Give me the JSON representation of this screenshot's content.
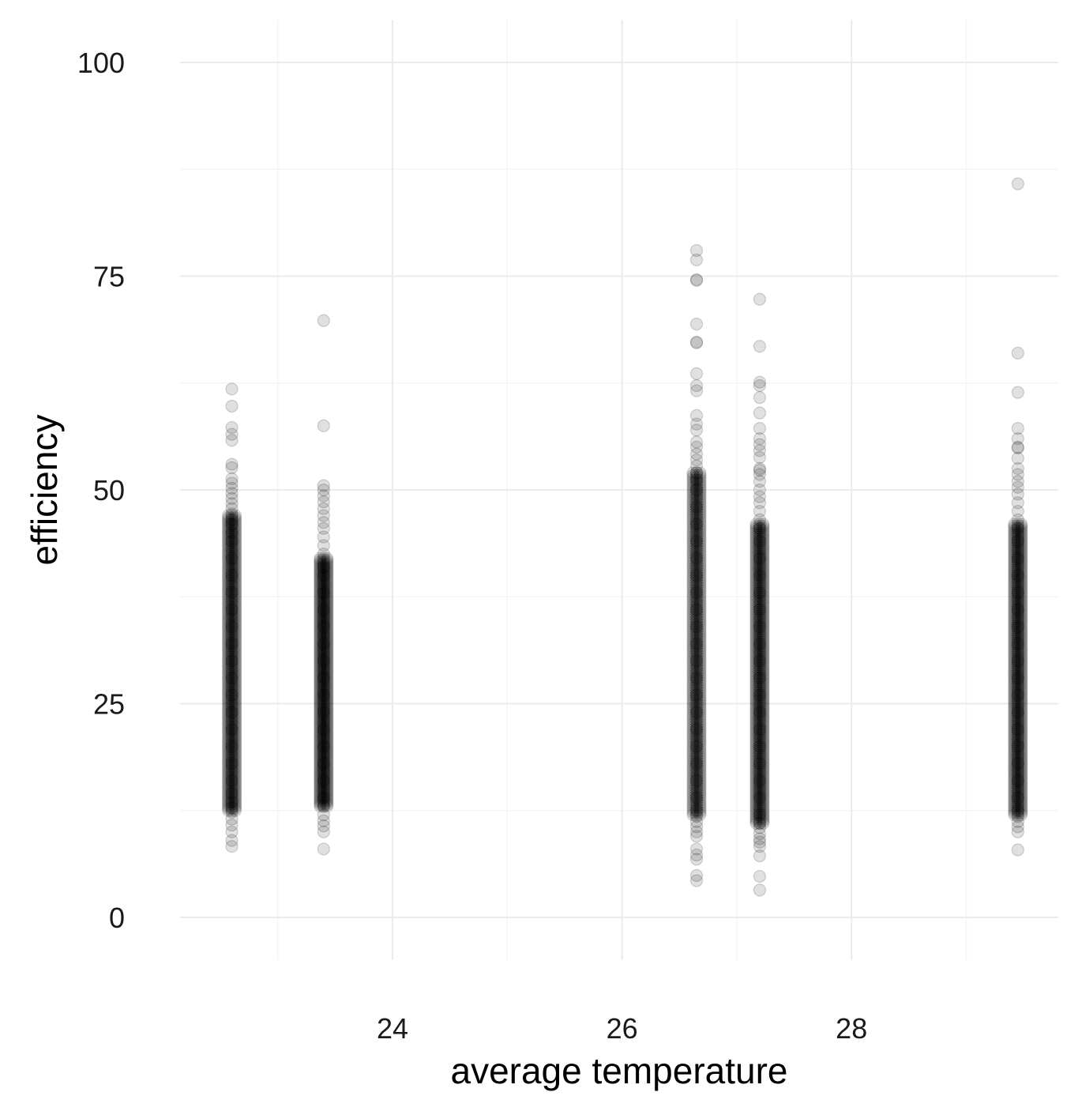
{
  "colors": {
    "background": "#ffffff",
    "grid_major": "#ebebeb",
    "grid_minor": "#f5f5f5",
    "point_fill": "#000000",
    "point_stroke": "#000000"
  },
  "chart_data": {
    "type": "scatter",
    "title": "",
    "xlabel": "average temperature",
    "ylabel": "efficiency",
    "xlim": [
      22.0,
      29.8
    ],
    "ylim": [
      -2,
      102
    ],
    "x_ticks": [
      24,
      26,
      28
    ],
    "x_tick_labels": [
      "24",
      "26",
      "28"
    ],
    "x_minor_ticks": [
      23,
      25,
      27,
      29
    ],
    "y_ticks": [
      0,
      25,
      50,
      75,
      100
    ],
    "y_tick_labels": [
      "0",
      "25",
      "50",
      "75",
      "100"
    ],
    "y_minor_ticks": [
      12.5,
      37.5,
      62.5,
      87.5
    ],
    "grid": true,
    "legend": "none",
    "point_opacity": 0.12,
    "series": [
      {
        "x": 22.6,
        "dense_range": [
          12.5,
          47
        ],
        "y": [
          8.3,
          9.0,
          10.0,
          10.8,
          11.5,
          12.3,
          12.8,
          13.5,
          14.5,
          16,
          18,
          20,
          22,
          24,
          26,
          28,
          30,
          32,
          34,
          36,
          38,
          40,
          42,
          44,
          45,
          46,
          46.5,
          47.2,
          47.8,
          48.4,
          49.0,
          49.6,
          50.2,
          50.8,
          51.3,
          52.6,
          53.0,
          55.8,
          56.5,
          57.3,
          59.8,
          61.8
        ]
      },
      {
        "x": 23.4,
        "dense_range": [
          13,
          42
        ],
        "y": [
          8.0,
          10.0,
          10.7,
          11.3,
          12,
          13,
          14,
          16,
          18,
          20,
          22,
          24,
          26,
          28,
          30,
          32,
          34,
          36,
          38,
          40,
          41,
          42.5,
          43.5,
          44.5,
          45.5,
          46.2,
          47,
          47.8,
          48.6,
          49.3,
          50,
          50.5,
          57.5,
          69.8
        ]
      },
      {
        "x": 26.65,
        "dense_range": [
          12,
          52
        ],
        "y": [
          4.3,
          4.9,
          6.8,
          7.3,
          8.0,
          9.5,
          10.0,
          10.6,
          11.2,
          11.8,
          12.5,
          14,
          16,
          18,
          20,
          22,
          24,
          26,
          28,
          30,
          32,
          34,
          36,
          38,
          40,
          42,
          44,
          46,
          48,
          50,
          51.2,
          52.0,
          52.8,
          53.5,
          54.2,
          55.0,
          55.6,
          57.0,
          57.7,
          58.7,
          61.6,
          62.2,
          63.6,
          67.2,
          67.3,
          69.4,
          74.5,
          74.6,
          76.9,
          78.0
        ]
      },
      {
        "x": 27.2,
        "dense_range": [
          11,
          46
        ],
        "y": [
          3.2,
          4.8,
          7.2,
          8.3,
          8.8,
          9.2,
          9.8,
          10.5,
          11,
          12,
          14,
          16,
          18,
          20,
          22,
          24,
          26,
          28,
          30,
          32,
          34,
          36,
          38,
          40,
          42,
          44,
          45.5,
          46.5,
          47.5,
          48.5,
          49.2,
          50,
          51,
          51.8,
          52.3,
          52.5,
          53.8,
          54.6,
          55.3,
          56.0,
          57.2,
          59.0,
          60.8,
          62.2,
          62.6,
          66.8,
          72.3
        ]
      },
      {
        "x": 29.45,
        "dense_range": [
          12,
          46
        ],
        "y": [
          7.9,
          10.0,
          10.6,
          11.2,
          11.8,
          12.5,
          14,
          16,
          18,
          20,
          22,
          24,
          26,
          28,
          30,
          32,
          34,
          36,
          38,
          40,
          42,
          44,
          45.5,
          46.5,
          47.5,
          48.5,
          49.5,
          50.3,
          51.0,
          51.8,
          52.5,
          53.7,
          54.9,
          55.0,
          56.0,
          57.2,
          61.4,
          66.0,
          85.8
        ]
      }
    ]
  }
}
